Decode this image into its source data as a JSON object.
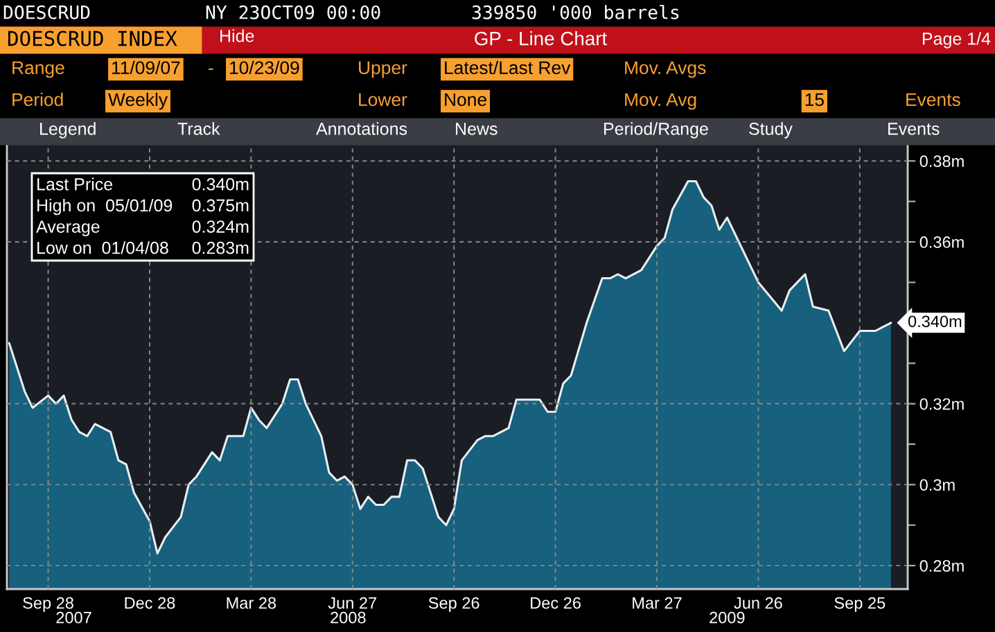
{
  "chart_data": {
    "type": "area",
    "title": "DOESCRUD INDEX",
    "subtitle": "GP - Line Chart",
    "x": [
      "2007-08-24",
      "2007-08-31",
      "2007-09-07",
      "2007-09-14",
      "2007-09-28",
      "2007-10-05",
      "2007-10-12",
      "2007-10-19",
      "2007-10-26",
      "2007-11-02",
      "2007-11-09",
      "2007-11-16",
      "2007-11-23",
      "2007-11-30",
      "2007-12-07",
      "2007-12-14",
      "2007-12-28",
      "2008-01-04",
      "2008-01-11",
      "2008-01-25",
      "2008-02-01",
      "2008-02-08",
      "2008-02-22",
      "2008-02-29",
      "2008-03-07",
      "2008-03-21",
      "2008-03-28",
      "2008-04-04",
      "2008-04-11",
      "2008-04-25",
      "2008-05-02",
      "2008-05-09",
      "2008-05-16",
      "2008-05-30",
      "2008-06-06",
      "2008-06-13",
      "2008-06-20",
      "2008-06-27",
      "2008-07-04",
      "2008-07-11",
      "2008-07-18",
      "2008-07-25",
      "2008-08-01",
      "2008-08-08",
      "2008-08-15",
      "2008-08-22",
      "2008-08-29",
      "2008-09-12",
      "2008-09-19",
      "2008-09-26",
      "2008-10-03",
      "2008-10-17",
      "2008-10-24",
      "2008-10-31",
      "2008-11-14",
      "2008-11-21",
      "2008-11-28",
      "2008-12-12",
      "2008-12-19",
      "2008-12-26",
      "2009-01-02",
      "2009-01-09",
      "2009-01-23",
      "2009-02-06",
      "2009-02-13",
      "2009-02-20",
      "2009-02-27",
      "2009-03-13",
      "2009-03-27",
      "2009-04-03",
      "2009-04-10",
      "2009-04-24",
      "2009-05-01",
      "2009-05-08",
      "2009-05-15",
      "2009-05-22",
      "2009-05-29",
      "2009-06-12",
      "2009-06-26",
      "2009-07-17",
      "2009-07-24",
      "2009-07-31",
      "2009-08-07",
      "2009-08-14",
      "2009-08-28",
      "2009-09-11",
      "2009-09-25",
      "2009-10-02",
      "2009-10-09",
      "2009-10-16",
      "2009-10-23"
    ],
    "series": [
      {
        "color": "#17607e",
        "values": [
          0.335,
          0.329,
          0.323,
          0.319,
          0.322,
          0.32,
          0.322,
          0.316,
          0.313,
          0.312,
          0.315,
          0.314,
          0.313,
          0.306,
          0.305,
          0.298,
          0.291,
          0.283,
          0.287,
          0.292,
          0.3,
          0.302,
          0.308,
          0.306,
          0.312,
          0.312,
          0.319,
          0.316,
          0.314,
          0.32,
          0.326,
          0.326,
          0.32,
          0.312,
          0.303,
          0.301,
          0.302,
          0.3,
          0.294,
          0.297,
          0.295,
          0.295,
          0.297,
          0.297,
          0.306,
          0.306,
          0.304,
          0.292,
          0.29,
          0.294,
          0.306,
          0.311,
          0.312,
          0.312,
          0.314,
          0.321,
          0.321,
          0.321,
          0.318,
          0.318,
          0.325,
          0.327,
          0.34,
          0.351,
          0.351,
          0.352,
          0.351,
          0.353,
          0.359,
          0.361,
          0.368,
          0.375,
          0.375,
          0.371,
          0.369,
          0.363,
          0.366,
          0.358,
          0.35,
          0.343,
          0.348,
          0.35,
          0.352,
          0.344,
          0.343,
          0.333,
          0.338,
          0.338,
          0.338,
          0.339,
          0.34
        ]
      }
    ],
    "xlim": [
      "2007-08-22",
      "2009-11-07"
    ],
    "xticks": [
      {
        "value": "2007-09-28",
        "label": "Sep 28"
      },
      {
        "value": "2007-12-28",
        "label": "Dec 28"
      },
      {
        "value": "2008-03-28",
        "label": "Mar 28"
      },
      {
        "value": "2008-06-27",
        "label": "Jun 27"
      },
      {
        "value": "2008-09-26",
        "label": "Sep 26"
      },
      {
        "value": "2008-12-26",
        "label": "Dec 26"
      },
      {
        "value": "2009-03-27",
        "label": "Mar 27"
      },
      {
        "value": "2009-06-26",
        "label": "Jun 26"
      },
      {
        "value": "2009-09-25",
        "label": "Sep 25"
      }
    ],
    "x2lim": [
      "2007-08-22",
      "2009-11-07"
    ],
    "x2ticks": [
      {
        "value": "2007-10-21",
        "label": "2007"
      },
      {
        "value": "2008-06-23",
        "label": "2008"
      },
      {
        "value": "2009-05-29",
        "label": "2009"
      }
    ],
    "ylim": [
      0.2742,
      0.3845
    ],
    "yticks": [
      {
        "value": 0.28,
        "label": "0.28m"
      },
      {
        "value": 0.29,
        "label": null
      },
      {
        "value": 0.3,
        "label": "0.3m"
      },
      {
        "value": 0.31,
        "label": null
      },
      {
        "value": 0.32,
        "label": "0.32m"
      },
      {
        "value": 0.33,
        "label": null
      },
      {
        "value": 0.36,
        "label": "0.36m"
      },
      {
        "value": 0.35,
        "label": null
      },
      {
        "value": 0.37,
        "label": null
      },
      {
        "value": 0.38,
        "label": "0.38m"
      }
    ],
    "grid": true,
    "annotations": [
      "DOESCRUD",
      "NY 23OCT09 00:00",
      "339850 '000 barrels",
      "Hide",
      "Page 1/4",
      "Range",
      "11/09/07",
      "-",
      "10/23/09",
      "Upper",
      "Latest/Last Rev",
      "Mov. Avgs",
      "Period",
      "Weekly",
      "Lower",
      "None",
      "Mov. Avg",
      "15",
      "Events",
      "Legend",
      "Track",
      "Annotations",
      "News",
      "Period/Range",
      "Study",
      "Events",
      "Last Price",
      "0.340m",
      "High on  05/01/09",
      "0.375m",
      "Average",
      "0.324m",
      "Low on  01/04/08",
      "0.283m",
      {
        "text": "0.340m",
        "x": "2009-10-23",
        "y": 0.34
      }
    ]
  }
}
